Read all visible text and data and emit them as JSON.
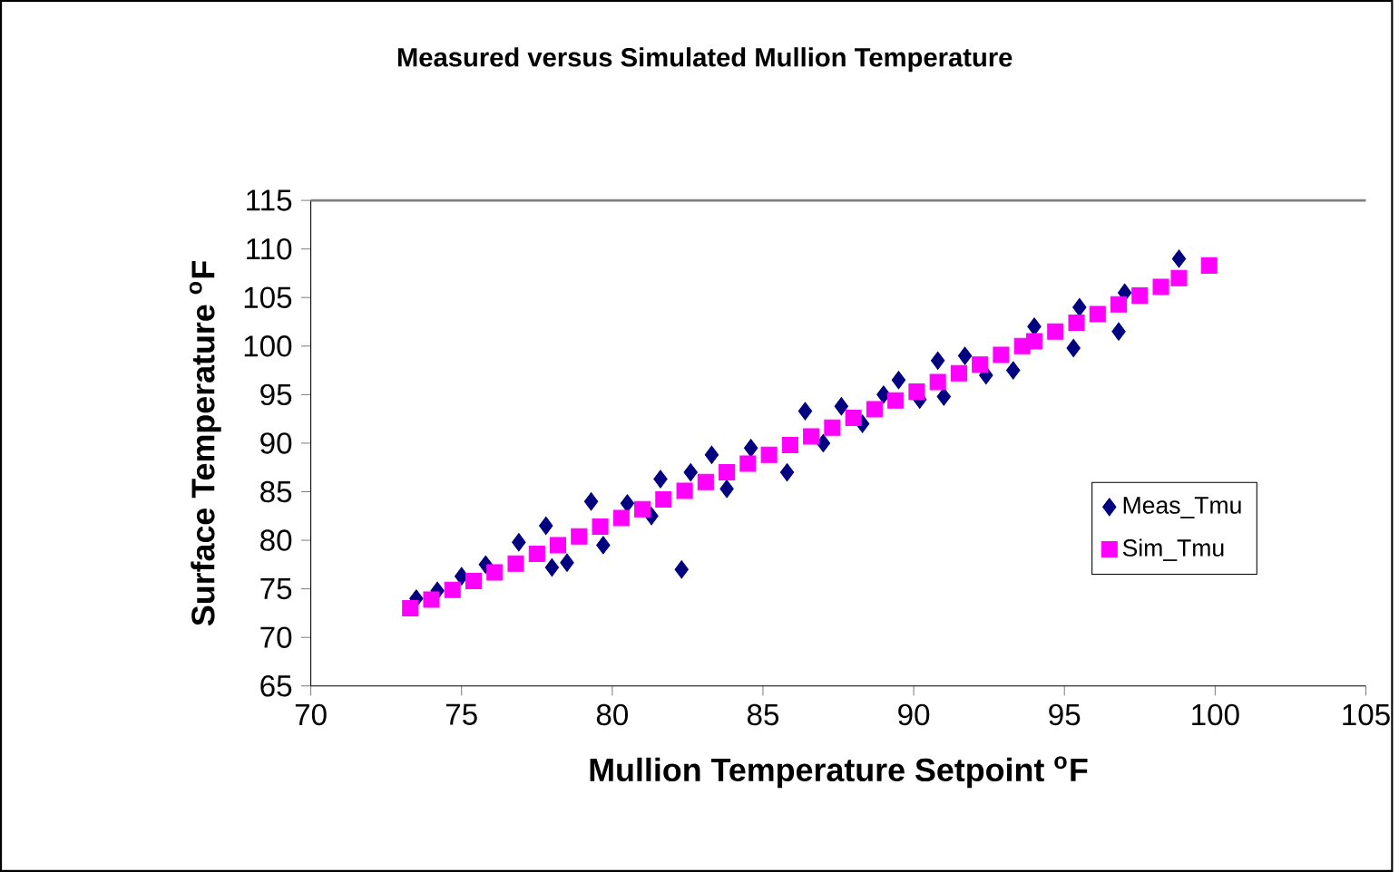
{
  "chart_data": {
    "type": "scatter",
    "title": "Measured versus Simulated Mullion Temperature",
    "xlabel": "Mullion Temperature Setpoint $^{o}$F",
    "ylabel": "Surface Temperature $^{o}$F",
    "xlim": [
      70,
      105
    ],
    "xticks": [
      70,
      75,
      80,
      85,
      90,
      95,
      100,
      105
    ],
    "ylim": [
      65,
      115
    ],
    "yticks": [
      65,
      70,
      75,
      80,
      85,
      90,
      95,
      100,
      105,
      110,
      115
    ],
    "grid": false,
    "legend": "right",
    "series": [
      {
        "name": "Meas_Tmu",
        "color": "#000080",
        "marker": "diamond",
        "x": [
          73.5,
          74.2,
          75.0,
          75.8,
          76.9,
          77.8,
          78.0,
          78.5,
          79.3,
          79.7,
          80.5,
          81.3,
          81.6,
          82.3,
          82.6,
          83.3,
          83.8,
          84.6,
          85.8,
          86.4,
          87.0,
          87.6,
          88.3,
          89.0,
          89.5,
          90.2,
          90.8,
          91.0,
          91.7,
          92.4,
          93.3,
          94.0,
          95.3,
          95.5,
          96.8,
          97.0,
          98.8
        ],
        "values": [
          74.0,
          74.8,
          76.3,
          77.5,
          79.8,
          81.5,
          77.2,
          77.7,
          84.0,
          79.5,
          83.8,
          82.5,
          86.3,
          77.0,
          87.0,
          88.8,
          85.3,
          89.5,
          87.0,
          93.3,
          90.0,
          93.8,
          92.0,
          95.0,
          96.5,
          94.5,
          98.5,
          94.8,
          99.0,
          97.0,
          97.5,
          102.0,
          99.8,
          104.0,
          101.5,
          105.5,
          109.0
        ]
      },
      {
        "name": "Sim_Tmu",
        "color": "#ff00ff",
        "marker": "square",
        "x": [
          73.3,
          74.0,
          74.7,
          75.4,
          76.1,
          76.8,
          77.5,
          78.2,
          78.9,
          79.6,
          80.3,
          81.0,
          81.7,
          82.4,
          83.1,
          83.8,
          84.5,
          85.2,
          85.9,
          86.6,
          87.3,
          88.0,
          88.7,
          89.4,
          90.1,
          90.8,
          91.5,
          92.2,
          92.9,
          93.6,
          94.0,
          94.7,
          95.4,
          96.1,
          96.8,
          97.5,
          98.2,
          98.8,
          99.8
        ],
        "values": [
          73.0,
          73.9,
          74.9,
          75.8,
          76.7,
          77.6,
          78.6,
          79.5,
          80.4,
          81.4,
          82.3,
          83.2,
          84.2,
          85.1,
          86.0,
          87.0,
          87.9,
          88.8,
          89.8,
          90.7,
          91.6,
          92.6,
          93.5,
          94.4,
          95.3,
          96.3,
          97.2,
          98.1,
          99.1,
          100.0,
          100.5,
          101.5,
          102.4,
          103.3,
          104.3,
          105.2,
          106.1,
          107.0,
          108.3
        ]
      }
    ]
  }
}
